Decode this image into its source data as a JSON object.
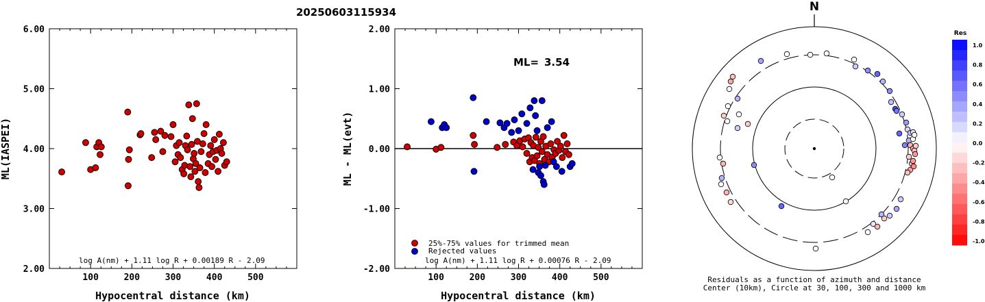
{
  "title": "20250603115934",
  "chart_data": [
    {
      "type": "scatter",
      "xlabel": "Hypocentral distance (km)",
      "ylabel": "ML(IASPEI)",
      "xlim": [
        0,
        600
      ],
      "ylim": [
        2.0,
        6.0
      ],
      "xticks": [
        "100",
        "200",
        "300",
        "400",
        "500"
      ],
      "yticks": [
        "2.00",
        "3.00",
        "4.00",
        "5.00",
        "6.00"
      ],
      "formula": "log A(nm) + 1.11 log R + 0.00189 R - 2.09",
      "marker_color": "#cc0000",
      "points": [
        [
          30,
          3.61
        ],
        [
          88,
          4.1
        ],
        [
          100,
          3.65
        ],
        [
          112,
          3.68
        ],
        [
          115,
          4.03
        ],
        [
          120,
          4.1
        ],
        [
          123,
          3.9
        ],
        [
          126,
          4.03
        ],
        [
          190,
          4.61
        ],
        [
          191,
          3.38
        ],
        [
          192,
          3.82
        ],
        [
          194,
          3.98
        ],
        [
          220,
          4.23
        ],
        [
          222,
          4.25
        ],
        [
          248,
          3.85
        ],
        [
          255,
          4.27
        ],
        [
          258,
          4.15
        ],
        [
          270,
          4.29
        ],
        [
          275,
          3.95
        ],
        [
          280,
          4.22
        ],
        [
          295,
          4.2
        ],
        [
          300,
          4.4
        ],
        [
          305,
          3.78
        ],
        [
          308,
          4.05
        ],
        [
          312,
          3.9
        ],
        [
          315,
          4.1
        ],
        [
          318,
          3.85
        ],
        [
          322,
          3.65
        ],
        [
          326,
          3.58
        ],
        [
          328,
          3.72
        ],
        [
          330,
          4.05
        ],
        [
          333,
          4.21
        ],
        [
          335,
          3.98
        ],
        [
          338,
          4.73
        ],
        [
          341,
          3.7
        ],
        [
          343,
          3.53
        ],
        [
          345,
          4.07
        ],
        [
          347,
          4.5
        ],
        [
          349,
          3.83
        ],
        [
          351,
          3.92
        ],
        [
          353,
          3.62
        ],
        [
          355,
          3.75
        ],
        [
          357,
          4.75
        ],
        [
          359,
          4.12
        ],
        [
          361,
          3.45
        ],
        [
          363,
          3.35
        ],
        [
          365,
          3.68
        ],
        [
          368,
          3.95
        ],
        [
          372,
          4.08
        ],
        [
          375,
          4.25
        ],
        [
          378,
          3.6
        ],
        [
          380,
          4.4
        ],
        [
          385,
          3.75
        ],
        [
          388,
          3.9
        ],
        [
          391,
          4.05
        ],
        [
          394,
          3.7
        ],
        [
          397,
          3.95
        ],
        [
          400,
          4.15
        ],
        [
          403,
          3.82
        ],
        [
          406,
          3.97
        ],
        [
          409,
          3.62
        ],
        [
          412,
          4.24
        ],
        [
          415,
          4.0
        ],
        [
          418,
          3.92
        ],
        [
          422,
          4.1
        ],
        [
          425,
          3.72
        ],
        [
          430,
          3.78
        ]
      ]
    },
    {
      "type": "scatter",
      "xlabel": "Hypocentral distance (km)",
      "ylabel": "ML - ML(evt)",
      "xlim": [
        0,
        600
      ],
      "ylim": [
        -2.0,
        2.0
      ],
      "xticks": [
        "100",
        "200",
        "300",
        "400",
        "500"
      ],
      "yticks": [
        "-2.00",
        "-1.00",
        "0.00",
        "1.00",
        "2.00"
      ],
      "ml_label": "ML=",
      "ml_value": "3.54",
      "formula": "log A(nm) + 1.11 log R + 0.00076 R - 2.09",
      "legend": [
        {
          "label": "25%-75% values for trimmed mean",
          "color": "#cc0000"
        },
        {
          "label": "Rejected values",
          "color": "#0000cc"
        }
      ],
      "accepted": [
        [
          30,
          0.03
        ],
        [
          100,
          -0.01
        ],
        [
          112,
          0.02
        ],
        [
          190,
          0.22
        ],
        [
          193,
          0.07
        ],
        [
          248,
          0.02
        ],
        [
          268,
          0.07
        ],
        [
          288,
          0.11
        ],
        [
          296,
          0.05
        ],
        [
          303,
          0.13
        ],
        [
          310,
          0.03
        ],
        [
          315,
          0.16
        ],
        [
          320,
          -0.08
        ],
        [
          324,
          0.18
        ],
        [
          327,
          -0.22
        ],
        [
          330,
          0.1
        ],
        [
          333,
          -0.15
        ],
        [
          336,
          0.05
        ],
        [
          339,
          -0.2
        ],
        [
          342,
          0.19
        ],
        [
          345,
          -0.12
        ],
        [
          348,
          0.02
        ],
        [
          351,
          -0.25
        ],
        [
          354,
          0.12
        ],
        [
          357,
          -0.05
        ],
        [
          360,
          0.2
        ],
        [
          363,
          -0.18
        ],
        [
          366,
          0.04
        ],
        [
          370,
          -0.1
        ],
        [
          374,
          -0.22
        ],
        [
          378,
          0.08
        ],
        [
          382,
          -0.14
        ],
        [
          386,
          -0.02
        ],
        [
          390,
          -0.08
        ],
        [
          394,
          0.12
        ],
        [
          398,
          -0.03
        ],
        [
          402,
          0.04
        ],
        [
          406,
          -0.15
        ],
        [
          410,
          0.22
        ],
        [
          414,
          -0.05
        ],
        [
          418,
          0.08
        ],
        [
          422,
          -0.1
        ]
      ],
      "rejected": [
        [
          88,
          0.45
        ],
        [
          115,
          0.35
        ],
        [
          120,
          0.4
        ],
        [
          125,
          0.35
        ],
        [
          190,
          0.85
        ],
        [
          192,
          -0.38
        ],
        [
          222,
          0.45
        ],
        [
          255,
          0.43
        ],
        [
          265,
          0.35
        ],
        [
          272,
          0.42
        ],
        [
          283,
          0.27
        ],
        [
          290,
          0.48
        ],
        [
          300,
          0.3
        ],
        [
          308,
          0.58
        ],
        [
          320,
          0.42
        ],
        [
          328,
          0.68
        ],
        [
          335,
          -0.35
        ],
        [
          338,
          0.8
        ],
        [
          341,
          0.55
        ],
        [
          345,
          0.3
        ],
        [
          348,
          -0.4
        ],
        [
          351,
          -0.3
        ],
        [
          354,
          -0.45
        ],
        [
          357,
          0.8
        ],
        [
          360,
          -0.55
        ],
        [
          362,
          -0.6
        ],
        [
          365,
          -0.28
        ],
        [
          370,
          0.35
        ],
        [
          380,
          0.45
        ],
        [
          385,
          -0.22
        ],
        [
          392,
          -0.3
        ],
        [
          405,
          -0.38
        ],
        [
          425,
          -0.3
        ],
        [
          430,
          -0.25
        ]
      ]
    }
  ],
  "polar": {
    "north_label": "N",
    "caption_line1": "Residuals as a function of azimuth and distance",
    "caption_line2": "Center (10km), Circle at 30, 100, 300 and 1000 km",
    "colorbar_title": "Res",
    "colorbar_ticks": [
      "1.0",
      "0.8",
      "0.6",
      "0.4",
      "0.2",
      "0.0",
      "-0.2",
      "-0.4",
      "-0.6",
      "-0.8",
      "-1.0"
    ],
    "stations": [
      [
        -112,
        -73,
        0.3
      ],
      [
        -78,
        -128,
        0.35
      ],
      [
        -40,
        -138,
        0
      ],
      [
        -6,
        -137,
        0
      ],
      [
        18,
        -139,
        0
      ],
      [
        58,
        -130,
        0
      ],
      [
        60,
        -120,
        0.2
      ],
      [
        78,
        -114,
        0.45
      ],
      [
        92,
        -109,
        0.6
      ],
      [
        100,
        -98,
        0.3
      ],
      [
        110,
        -84,
        0.45
      ],
      [
        112,
        -68,
        0.25
      ],
      [
        118,
        -58,
        0.7
      ],
      [
        120,
        -55,
        0.55
      ],
      [
        128,
        -50,
        0.2
      ],
      [
        134,
        -38,
        0.4
      ],
      [
        136,
        -28,
        0.15
      ],
      [
        138,
        -12,
        0.3
      ],
      [
        140,
        -23,
        0.25
      ],
      [
        144,
        -24,
        0.1
      ],
      [
        144,
        -14,
        0
      ],
      [
        146,
        -20,
        0
      ],
      [
        140,
        -5,
        -0.3
      ],
      [
        144,
        0,
        -0.35
      ],
      [
        146,
        3,
        -0.25
      ],
      [
        148,
        -4,
        -0.2
      ],
      [
        147,
        8,
        -0.4
      ],
      [
        124,
        -22,
        0.6
      ],
      [
        132,
        -5,
        0.5
      ],
      [
        138,
        12,
        -0.2
      ],
      [
        142,
        22,
        -0.3
      ],
      [
        140,
        31,
        -0.35
      ],
      [
        145,
        26,
        -0.45
      ],
      [
        144,
        18,
        -0.4
      ],
      [
        136,
        35,
        -0.25
      ],
      [
        126,
        74,
        0.2
      ],
      [
        120,
        88,
        0.35
      ],
      [
        110,
        98,
        0.2
      ],
      [
        102,
        102,
        -0.2
      ],
      [
        98,
        96,
        0.3
      ],
      [
        86,
        110,
        0.1
      ],
      [
        92,
        114,
        -0.3
      ],
      [
        78,
        122,
        0
      ],
      [
        46,
        77,
        0
      ],
      [
        2,
        146,
        0
      ],
      [
        -119,
        -105,
        -0.25
      ],
      [
        -122,
        -98,
        -0.35
      ],
      [
        -124,
        -87,
        0
      ],
      [
        -126,
        -62,
        0
      ],
      [
        -127,
        -40,
        0
      ],
      [
        -132,
        -48,
        -0.2
      ],
      [
        -112,
        -30,
        0.2
      ],
      [
        -97,
        -36,
        -0.2
      ],
      [
        -110,
        -50,
        0
      ],
      [
        -138,
        13,
        0
      ],
      [
        -133,
        22,
        -0.3
      ],
      [
        -135,
        43,
        0.3
      ],
      [
        -136,
        52,
        0
      ],
      [
        -128,
        64,
        -0.3
      ],
      [
        -122,
        78,
        -0.15
      ],
      [
        -88,
        24,
        0.45
      ],
      [
        -48,
        84,
        0.6
      ],
      [
        26,
        42,
        0
      ]
    ]
  }
}
